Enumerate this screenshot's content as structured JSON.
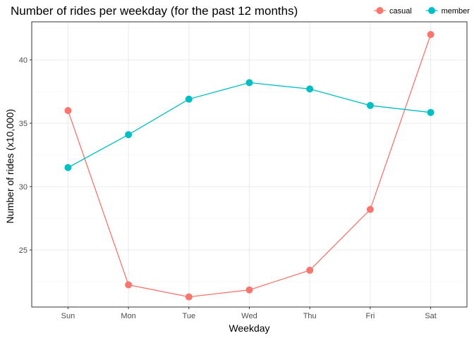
{
  "chart_data": {
    "type": "line",
    "title": "Number of rides per weekday (for the past 12 months)",
    "xlabel": "Weekday",
    "ylabel": "Number of rides (x10,000)",
    "categories": [
      "Sun",
      "Mon",
      "Tue",
      "Wed",
      "Thu",
      "Fri",
      "Sat"
    ],
    "ylim": [
      20.5,
      43.0
    ],
    "yticks": [
      25,
      30,
      35,
      40
    ],
    "grid": true,
    "legend_position": "top-right",
    "series": [
      {
        "name": "casual",
        "color": "#F8766D",
        "values": [
          36.0,
          22.25,
          21.3,
          21.85,
          23.4,
          28.2,
          42.0
        ]
      },
      {
        "name": "member",
        "color": "#00BFC4",
        "values": [
          31.5,
          34.1,
          36.9,
          38.2,
          37.7,
          36.4,
          35.85
        ]
      }
    ]
  }
}
